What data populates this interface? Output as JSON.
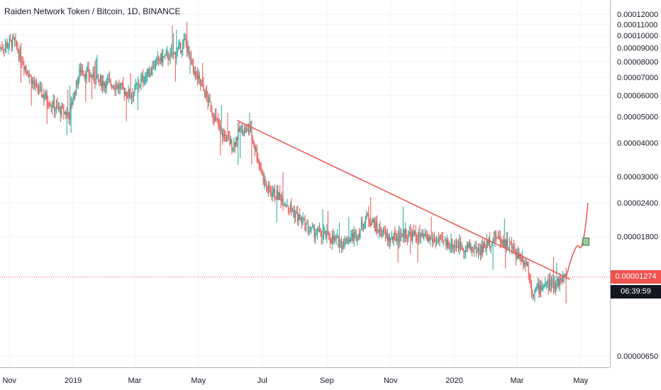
{
  "header": {
    "title": "Raiden Network Token / Bitcoin, 1D, BINANCE"
  },
  "price_axis": {
    "labels": [
      "0.00012000",
      "0.00011000",
      "0.00010000",
      "0.00009000",
      "0.00008000",
      "0.00007000",
      "0.00006000",
      "0.00005000",
      "0.00004000",
      "0.00003000",
      "0.00002400",
      "0.00001800",
      "0.00000650"
    ],
    "values": [
      0.00012,
      0.00011,
      0.0001,
      9e-05,
      8e-05,
      7e-05,
      6e-05,
      5e-05,
      4e-05,
      3e-05,
      2.4e-05,
      1.8e-05,
      6.5e-06
    ]
  },
  "last_price": {
    "value": "0.00001274",
    "countdown": "06:39:59",
    "color": "#ef5350"
  },
  "colors": {
    "up": "#26a69a",
    "down": "#ef5350",
    "trendline": "#ef5350",
    "grid": "#f0f3fa",
    "axis_text": "#131722"
  },
  "chart_data": {
    "type": "candlestick",
    "title": "Raiden Network Token / Bitcoin, 1D, BINANCE",
    "scale": "log",
    "x_ticks": [
      "Nov",
      "2019",
      "Mar",
      "May",
      "Jul",
      "Sep",
      "Nov",
      "2020",
      "Mar",
      "May"
    ],
    "x_range": [
      "2018-10-23",
      "2020-05-10"
    ],
    "y_range": [
      5.5e-06,
      0.000135
    ],
    "price_path": [
      [
        "2018-10-23",
        9e-05
      ],
      [
        "2018-11-05",
        9.5e-05
      ],
      [
        "2018-11-25",
        6.5e-05
      ],
      [
        "2018-12-15",
        5.4e-05
      ],
      [
        "2018-12-28",
        5.1e-05
      ],
      [
        "2019-01-08",
        7.5e-05
      ],
      [
        "2019-01-25",
        6.8e-05
      ],
      [
        "2019-02-10",
        6.6e-05
      ],
      [
        "2019-02-25",
        6e-05
      ],
      [
        "2019-03-10",
        7e-05
      ],
      [
        "2019-03-25",
        8.2e-05
      ],
      [
        "2019-04-08",
        8.5e-05
      ],
      [
        "2019-04-18",
        9.5e-05
      ],
      [
        "2019-04-28",
        7.2e-05
      ],
      [
        "2019-05-10",
        5.8e-05
      ],
      [
        "2019-05-22",
        4.4e-05
      ],
      [
        "2019-06-03",
        3.9e-05
      ],
      [
        "2019-06-10",
        4.5e-05
      ],
      [
        "2019-06-20",
        4.4e-05
      ],
      [
        "2019-07-05",
        2.7e-05
      ],
      [
        "2019-07-20",
        2.5e-05
      ],
      [
        "2019-08-01",
        2.2e-05
      ],
      [
        "2019-08-15",
        1.9e-05
      ],
      [
        "2019-09-01",
        1.8e-05
      ],
      [
        "2019-09-15",
        1.7e-05
      ],
      [
        "2019-10-01",
        1.85e-05
      ],
      [
        "2019-10-10",
        2.15e-05
      ],
      [
        "2019-10-20",
        1.9e-05
      ],
      [
        "2019-11-01",
        1.75e-05
      ],
      [
        "2019-11-15",
        1.85e-05
      ],
      [
        "2019-12-01",
        1.78e-05
      ],
      [
        "2019-12-20",
        1.72e-05
      ],
      [
        "2020-01-10",
        1.65e-05
      ],
      [
        "2020-01-25",
        1.6e-05
      ],
      [
        "2020-02-10",
        1.8e-05
      ],
      [
        "2020-02-20",
        1.7e-05
      ],
      [
        "2020-03-01",
        1.55e-05
      ],
      [
        "2020-03-10",
        1.45e-05
      ],
      [
        "2020-03-16",
        1.12e-05
      ],
      [
        "2020-03-25",
        1.18e-05
      ],
      [
        "2020-04-05",
        1.2e-05
      ],
      [
        "2020-04-17",
        1.27e-05
      ]
    ],
    "trendline": [
      [
        "2019-06-07",
        4.85e-05
      ],
      [
        "2020-04-21",
        1.25e-05
      ]
    ],
    "projection": [
      [
        "2020-04-17",
        1.27e-05
      ],
      [
        "2020-04-22",
        1.5e-05
      ],
      [
        "2020-04-28",
        1.7e-05
      ],
      [
        "2020-05-01",
        1.6e-05
      ],
      [
        "2020-05-05",
        1.85e-05
      ],
      [
        "2020-05-08",
        2.4e-05
      ]
    ],
    "target_box": {
      "from": "2020-05-03",
      "to": "2020-05-09",
      "high": 1.78e-05,
      "low": 1.67e-05
    },
    "last_price": 1.274e-05
  }
}
